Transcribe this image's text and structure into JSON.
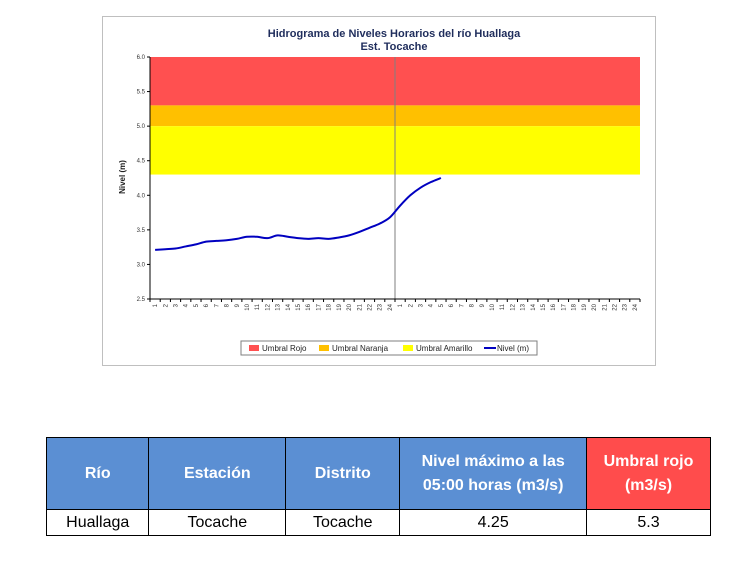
{
  "chart_data": {
    "type": "line",
    "title": "Hidrograma de Niveles Horarios del río Huallaga",
    "subtitle": "Est. Tocache",
    "ylabel": "Nivel (m)",
    "xlabel": "",
    "ylim": [
      2.5,
      6.0
    ],
    "yticks": [
      "2.5",
      "3.0",
      "3.5",
      "4.0",
      "4.5",
      "5.0",
      "5.5",
      "6.0"
    ],
    "xticks": [
      "1",
      "2",
      "3",
      "4",
      "5",
      "6",
      "7",
      "8",
      "9",
      "10",
      "11",
      "12",
      "13",
      "14",
      "15",
      "16",
      "17",
      "18",
      "19",
      "20",
      "21",
      "22",
      "23",
      "24",
      "1",
      "2",
      "3",
      "4",
      "5",
      "6",
      "7",
      "8",
      "9",
      "10",
      "11",
      "12",
      "13",
      "14",
      "15",
      "16",
      "17",
      "18",
      "19",
      "20",
      "21",
      "22",
      "23",
      "24"
    ],
    "thresholds": [
      {
        "name": "Umbral Rojo",
        "from": 5.3,
        "to": 6.0,
        "color": "#ff5050"
      },
      {
        "name": "Umbral Naranja",
        "from": 5.0,
        "to": 5.3,
        "color": "#ffc000"
      },
      {
        "name": "Umbral Amarillo",
        "from": 4.3,
        "to": 5.0,
        "color": "#ffff00"
      }
    ],
    "series": [
      {
        "name": "Nivel (m)",
        "color": "#0000c0",
        "values": [
          3.21,
          3.22,
          3.23,
          3.26,
          3.29,
          3.33,
          3.34,
          3.35,
          3.37,
          3.4,
          3.4,
          3.38,
          3.42,
          3.4,
          3.38,
          3.37,
          3.38,
          3.37,
          3.39,
          3.42,
          3.47,
          3.53,
          3.59,
          3.68,
          3.85,
          4.0,
          4.11,
          4.19,
          4.25
        ]
      }
    ],
    "legend": [
      "Umbral Rojo",
      "Umbral Naranja",
      "Umbral Amarillo",
      "Nivel (m)"
    ],
    "legend_position": "bottom",
    "grid": false
  },
  "table": {
    "headers": [
      "Río",
      "Estación",
      "Distrito",
      "Nivel máximo a las 05:00 horas (m3/s)",
      "Umbral rojo (m3/s)"
    ],
    "row": [
      "Huallaga",
      "Tocache",
      "Tocache",
      "4.25",
      "5.3"
    ]
  }
}
